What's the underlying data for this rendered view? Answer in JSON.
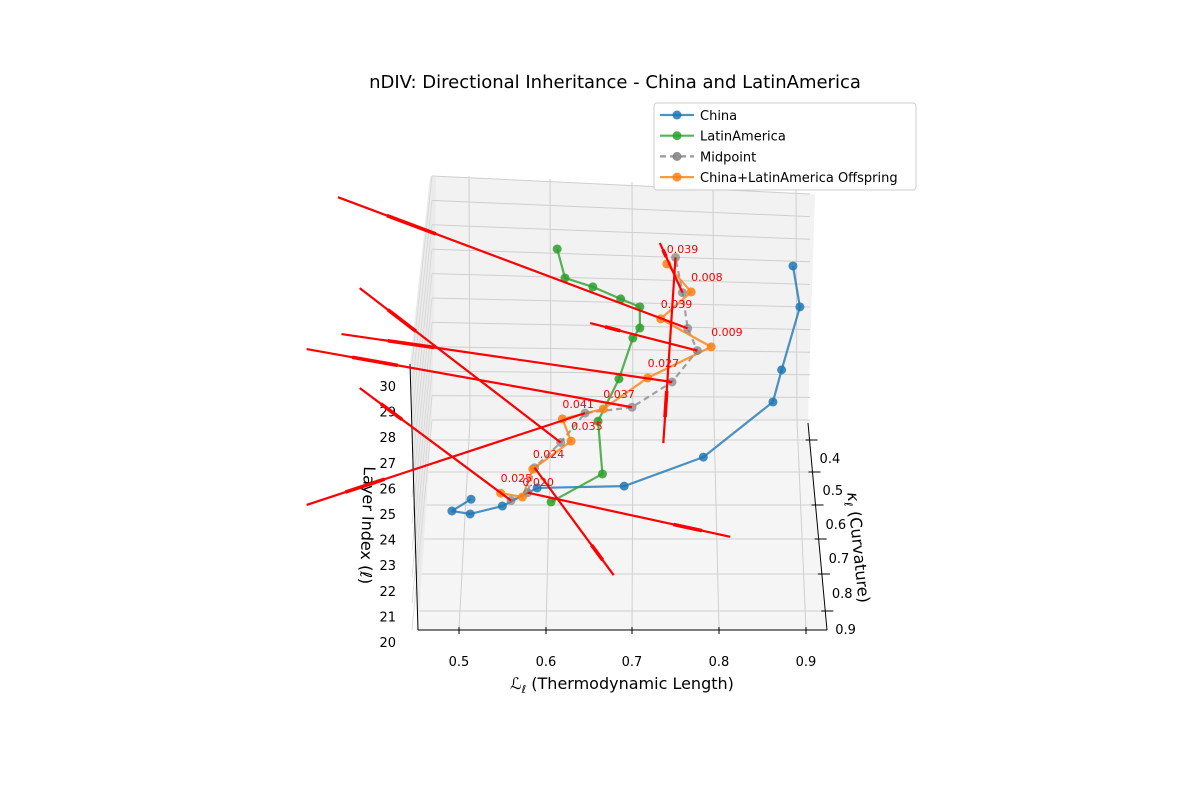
{
  "chart_data": {
    "type": "line3d",
    "title": "nDIV: Directional Inheritance - China and LatinAmerica",
    "xlabel": {
      "symbol": "ℒ",
      "sub": "ℓ",
      "text": " (Thermodynamic Length)"
    },
    "ylabel": {
      "symbol": "κ",
      "sub": "ℓ",
      "text": " (Curvature)"
    },
    "zlabel": "Layer Index (ℓ)",
    "xticks": [
      "0.5",
      "0.6",
      "0.7",
      "0.8",
      "0.9"
    ],
    "yticks": [
      "0.4",
      "0.5",
      "0.6",
      "0.7",
      "0.8",
      "0.9"
    ],
    "zticks": [
      "20",
      "21",
      "22",
      "23",
      "24",
      "25",
      "26",
      "27",
      "28",
      "29",
      "30"
    ],
    "xlim": [
      0.455,
      0.925
    ],
    "ylim": [
      0.35,
      0.95
    ],
    "zlim": [
      20,
      30
    ],
    "grid": true,
    "legend": "top-right",
    "layers": [
      20,
      21,
      22,
      23,
      24,
      25,
      26,
      27,
      28,
      29,
      30
    ],
    "series": [
      {
        "name": "China",
        "color": "#1f77b4",
        "dashed": false,
        "L": [
          0.515,
          0.493,
          0.514,
          0.551,
          0.591,
          0.691,
          0.782,
          0.862,
          0.872,
          0.893,
          0.885
        ],
        "kappa": [
          0.48,
          0.59,
          0.674,
          0.726,
          0.748,
          0.818,
          0.808,
          0.721,
          0.702,
          0.592,
          0.547
        ]
      },
      {
        "name": "LatinAmerica",
        "color": "#2ca02c",
        "dashed": false,
        "L": [
          0.607,
          0.666,
          0.661,
          0.685,
          0.701,
          0.709,
          0.709,
          0.687,
          0.655,
          0.623,
          0.614
        ],
        "kappa": [
          0.488,
          0.481,
          0.401,
          0.352,
          0.307,
          0.353,
          0.366,
          0.418,
          0.458,
          0.507,
          0.497
        ]
      },
      {
        "name": "Midpoint",
        "color": "#7f7f7f",
        "dashed": true,
        "L": [
          0.561,
          0.58,
          0.588,
          0.618,
          0.646,
          0.7,
          0.746,
          0.775,
          0.764,
          0.758,
          0.75
        ],
        "kappa": [
          0.484,
          0.536,
          0.538,
          0.539,
          0.528,
          0.586,
          0.587,
          0.57,
          0.58,
          0.55,
          0.522
        ]
      },
      {
        "name": "China+LatinAmerica Offspring",
        "color": "#ff7f0e",
        "dashed": false,
        "L": [
          0.549,
          0.574,
          0.586,
          0.63,
          0.62,
          0.667,
          0.718,
          0.791,
          0.733,
          0.768,
          0.74
        ],
        "kappa": [
          0.462,
          0.549,
          0.542,
          0.535,
          0.545,
          0.591,
          0.575,
          0.559,
          0.552,
          0.548,
          0.541
        ]
      }
    ],
    "offspring_annotations": [
      "0.025",
      "0.020",
      "0.024",
      "0.035",
      "0.041",
      "0.037",
      "0.027",
      "0.009",
      "0.039",
      "0.008",
      "0.039"
    ],
    "direction_arrows": {
      "color": "#ff0000",
      "from": "Midpoint",
      "end_L": [
        0.387,
        0.813,
        0.679,
        0.387,
        0.326,
        0.326,
        0.366,
        0.652,
        0.362,
        0.732,
        0.736
      ],
      "end_kappa": [
        0.153,
        0.666,
        0.854,
        0.085,
        0.798,
        0.415,
        0.446,
        0.489,
        0.194,
        0.404,
        1.068
      ]
    }
  }
}
